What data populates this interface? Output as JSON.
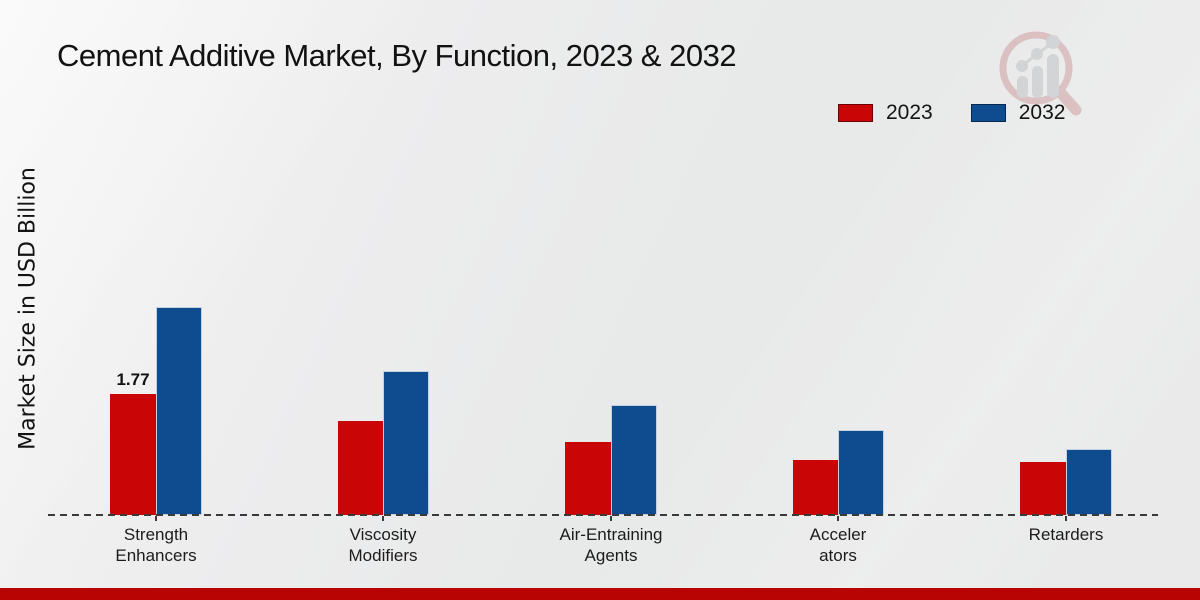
{
  "title": "Cement Additive Market, By Function, 2023 & 2032",
  "y_axis_label": "Market Size in USD Billion",
  "watermark": {
    "icon": "magnifier-bar-chart-logo",
    "red_color": "#c98f90",
    "gray_color": "#b6b9bd"
  },
  "footer": {
    "bar_color": "#b90404"
  },
  "chart_data": {
    "type": "bar",
    "title": "Cement Additive Market, By Function, 2023 & 2032",
    "ylabel": "Market Size in USD Billion",
    "xlabel": "",
    "categories": [
      "Strength Enhancers",
      "Viscosity Modifiers",
      "Air-Entraining Agents",
      "Accelerators",
      "Retarders"
    ],
    "category_display_lines": [
      [
        "Strength",
        "Enhancers"
      ],
      [
        "Viscosity",
        "Modifiers"
      ],
      [
        "Air-Entraining",
        "Agents"
      ],
      [
        "Acceler",
        "ators"
      ],
      [
        "Retarders"
      ]
    ],
    "series": [
      {
        "name": "2023",
        "color": "#c90505",
        "values": [
          1.77,
          1.38,
          1.07,
          0.81,
          0.78
        ]
      },
      {
        "name": "2032",
        "color": "#0f4c8f",
        "values": [
          3.05,
          2.11,
          1.61,
          1.25,
          0.97
        ]
      }
    ],
    "value_labels": [
      {
        "series_index": 0,
        "category_index": 0,
        "text": "1.77"
      }
    ],
    "ylim": [
      0,
      3.6
    ],
    "grid": false,
    "baseline_style": "dashed",
    "legend_position": "top-right"
  }
}
